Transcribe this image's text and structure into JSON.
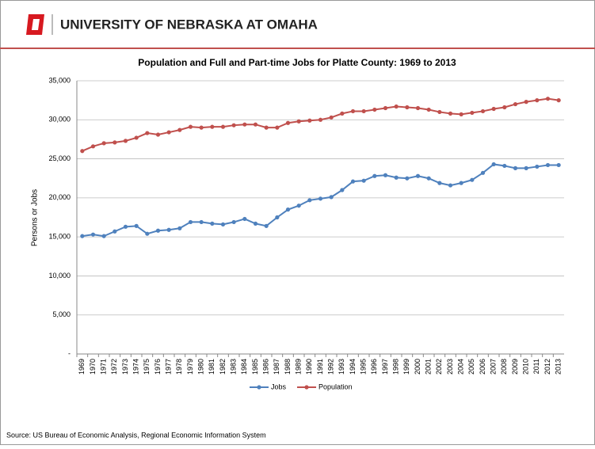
{
  "header": {
    "title": "UNIVERSITY OF NEBRASKA AT OMAHA"
  },
  "chart_data": {
    "type": "line",
    "title": "Population and Full and Part-time Jobs for Platte County: 1969 to 2013",
    "y_label": "Persons or Jobs",
    "source": "Source: US Bureau of Economic Analysis, Regional Economic Information System",
    "categories": [
      "1969",
      "1970",
      "1971",
      "1972",
      "1973",
      "1974",
      "1975",
      "1976",
      "1977",
      "1978",
      "1979",
      "1980",
      "1981",
      "1982",
      "1983",
      "1984",
      "1985",
      "1986",
      "1987",
      "1988",
      "1989",
      "1990",
      "1991",
      "1992",
      "1993",
      "1994",
      "1995",
      "1996",
      "1997",
      "1998",
      "1999",
      "2000",
      "2001",
      "2002",
      "2003",
      "2004",
      "2005",
      "2006",
      "2007",
      "2008",
      "2009",
      "2010",
      "2011",
      "2012",
      "2013"
    ],
    "series": [
      {
        "name": "Jobs",
        "color": "#4f81bd",
        "values": [
          15100,
          15300,
          15100,
          15700,
          16300,
          16400,
          15400,
          15800,
          15900,
          16100,
          16900,
          16900,
          16700,
          16600,
          16900,
          17300,
          16700,
          16400,
          17500,
          18500,
          19000,
          19700,
          19900,
          20100,
          21000,
          22100,
          22200,
          22800,
          22900,
          22600,
          22500,
          22800,
          22500,
          21900,
          21600,
          21900,
          22300,
          23200,
          24300,
          24100,
          23800,
          23800,
          24000,
          24200,
          24200
        ]
      },
      {
        "name": "Population",
        "color": "#c0504d",
        "values": [
          26000,
          26600,
          27000,
          27100,
          27300,
          27700,
          28300,
          28100,
          28400,
          28700,
          29100,
          29000,
          29100,
          29100,
          29300,
          29400,
          29400,
          29000,
          29000,
          29600,
          29800,
          29900,
          30000,
          30300,
          30800,
          31100,
          31100,
          31300,
          31500,
          31700,
          31600,
          31500,
          31300,
          31000,
          30800,
          30700,
          30900,
          31100,
          31400,
          31600,
          32000,
          32300,
          32500,
          32700,
          32500
        ]
      }
    ],
    "ylim": [
      0,
      35000
    ],
    "yticks": [
      {
        "value": 0,
        "label": "-"
      },
      {
        "value": 5000,
        "label": "5,000"
      },
      {
        "value": 10000,
        "label": "10,000"
      },
      {
        "value": 15000,
        "label": "15,000"
      },
      {
        "value": 20000,
        "label": "20,000"
      },
      {
        "value": 25000,
        "label": "25,000"
      },
      {
        "value": 30000,
        "label": "30,000"
      },
      {
        "value": 35000,
        "label": "35,000"
      }
    ],
    "grid": true,
    "legend": "bottom"
  }
}
